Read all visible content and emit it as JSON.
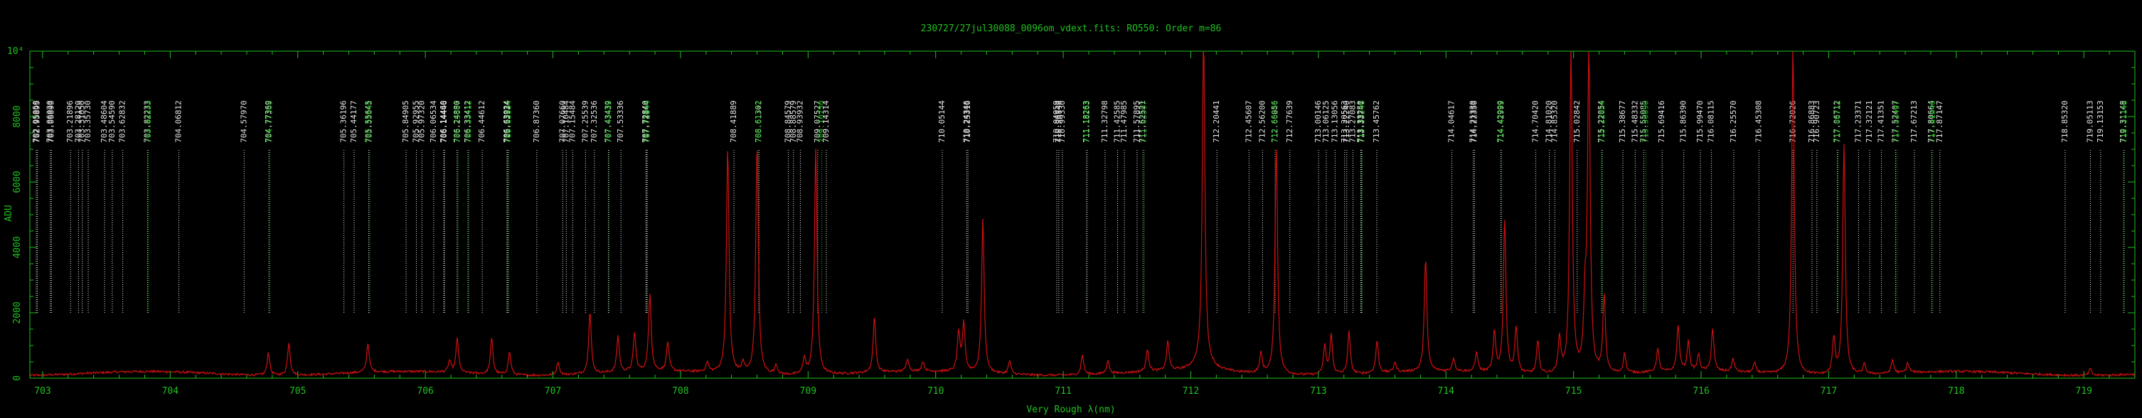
{
  "chart_data": {
    "type": "line",
    "title": "230727/27jul30088_0096om_vdext.fits: RO550: Order m=86",
    "xlabel": "Very Rough λ(nm)",
    "ylabel": "ADU",
    "y_exponent_label": "10⁴",
    "xlim": [
      702.9,
      719.4
    ],
    "ylim": [
      0,
      10000
    ],
    "x_ticks": [
      703,
      704,
      705,
      706,
      707,
      708,
      709,
      710,
      711,
      712,
      713,
      714,
      715,
      716,
      717,
      718,
      719
    ],
    "y_ticks": [
      0,
      2000,
      4000,
      6000,
      8000
    ],
    "colors": {
      "spectrum": "#d01010",
      "axes": "#20c020",
      "label_white": "#e8e8e8",
      "label_green": "#20c020"
    },
    "spectrum_peaks": [
      {
        "x": 704.77,
        "y": 700
      },
      {
        "x": 704.93,
        "y": 1000
      },
      {
        "x": 705.55,
        "y": 900
      },
      {
        "x": 706.19,
        "y": 350
      },
      {
        "x": 706.25,
        "y": 1050
      },
      {
        "x": 706.52,
        "y": 1100
      },
      {
        "x": 706.66,
        "y": 700
      },
      {
        "x": 707.04,
        "y": 400
      },
      {
        "x": 707.29,
        "y": 1900
      },
      {
        "x": 707.51,
        "y": 1100
      },
      {
        "x": 707.64,
        "y": 1200
      },
      {
        "x": 707.76,
        "y": 2400
      },
      {
        "x": 707.9,
        "y": 900
      },
      {
        "x": 708.21,
        "y": 300
      },
      {
        "x": 708.37,
        "y": 6900
      },
      {
        "x": 708.49,
        "y": 300
      },
      {
        "x": 708.6,
        "y": 7100
      },
      {
        "x": 708.75,
        "y": 300
      },
      {
        "x": 708.97,
        "y": 500
      },
      {
        "x": 709.06,
        "y": 6900
      },
      {
        "x": 709.52,
        "y": 1700
      },
      {
        "x": 709.78,
        "y": 400
      },
      {
        "x": 709.9,
        "y": 300
      },
      {
        "x": 710.18,
        "y": 1200
      },
      {
        "x": 710.22,
        "y": 1500
      },
      {
        "x": 710.37,
        "y": 4700
      },
      {
        "x": 710.58,
        "y": 400
      },
      {
        "x": 711.15,
        "y": 600
      },
      {
        "x": 711.35,
        "y": 400
      },
      {
        "x": 711.66,
        "y": 700
      },
      {
        "x": 711.82,
        "y": 900
      },
      {
        "x": 712.1,
        "y": 10000
      },
      {
        "x": 712.55,
        "y": 600
      },
      {
        "x": 712.67,
        "y": 7000
      },
      {
        "x": 713.05,
        "y": 900
      },
      {
        "x": 713.1,
        "y": 1200
      },
      {
        "x": 713.24,
        "y": 1300
      },
      {
        "x": 713.46,
        "y": 1000
      },
      {
        "x": 713.6,
        "y": 300
      },
      {
        "x": 713.84,
        "y": 3500
      },
      {
        "x": 714.06,
        "y": 400
      },
      {
        "x": 714.24,
        "y": 600
      },
      {
        "x": 714.38,
        "y": 1200
      },
      {
        "x": 714.46,
        "y": 4700
      },
      {
        "x": 714.55,
        "y": 1400
      },
      {
        "x": 714.72,
        "y": 1000
      },
      {
        "x": 714.89,
        "y": 1100
      },
      {
        "x": 714.98,
        "y": 10000
      },
      {
        "x": 715.09,
        "y": 1900
      },
      {
        "x": 715.12,
        "y": 10000
      },
      {
        "x": 715.24,
        "y": 2400
      },
      {
        "x": 715.4,
        "y": 600
      },
      {
        "x": 715.66,
        "y": 700
      },
      {
        "x": 715.82,
        "y": 1400
      },
      {
        "x": 715.9,
        "y": 900
      },
      {
        "x": 715.98,
        "y": 500
      },
      {
        "x": 716.09,
        "y": 1300
      },
      {
        "x": 716.25,
        "y": 400
      },
      {
        "x": 716.42,
        "y": 300
      },
      {
        "x": 716.72,
        "y": 10000
      },
      {
        "x": 717.04,
        "y": 1100
      },
      {
        "x": 717.12,
        "y": 7000
      },
      {
        "x": 717.28,
        "y": 300
      },
      {
        "x": 717.5,
        "y": 400
      },
      {
        "x": 717.62,
        "y": 300
      },
      {
        "x": 719.05,
        "y": 200
      }
    ],
    "line_labels": [
      {
        "text": "702.95050",
        "x": 702.9505,
        "color": "white"
      },
      {
        "text": "702.95895",
        "x": 702.959,
        "color": "white"
      },
      {
        "text": "703.06020",
        "x": 703.0602,
        "color": "white"
      },
      {
        "text": "703.06890",
        "x": 703.0689,
        "color": "white"
      },
      {
        "text": "703.21896",
        "x": 703.219,
        "color": "white"
      },
      {
        "text": "703.28120",
        "x": 703.2812,
        "color": "white"
      },
      {
        "text": "703.31050",
        "x": 703.3105,
        "color": "white"
      },
      {
        "text": "703.35730",
        "x": 703.3573,
        "color": "white"
      },
      {
        "text": "703.48604",
        "x": 703.486,
        "color": "white"
      },
      {
        "text": "703.54590",
        "x": 703.5459,
        "color": "white"
      },
      {
        "text": "703.62832",
        "x": 703.6283,
        "color": "white"
      },
      {
        "text": "703.82233",
        "x": 703.8223,
        "color": "white"
      },
      {
        "text": "703.82233",
        "x": 703.83,
        "color": "green"
      },
      {
        "text": "704.06812",
        "x": 704.0681,
        "color": "white"
      },
      {
        "text": "704.57970",
        "x": 704.5797,
        "color": "white"
      },
      {
        "text": "704.77369",
        "x": 704.7737,
        "color": "white"
      },
      {
        "text": "704.77369",
        "x": 704.781,
        "color": "green"
      },
      {
        "text": "705.36196",
        "x": 705.362,
        "color": "white"
      },
      {
        "text": "705.44177",
        "x": 705.4418,
        "color": "white"
      },
      {
        "text": "705.55645",
        "x": 705.5565,
        "color": "white"
      },
      {
        "text": "705.55645",
        "x": 705.564,
        "color": "green"
      },
      {
        "text": "705.84905",
        "x": 705.849,
        "color": "white"
      },
      {
        "text": "705.92955",
        "x": 705.9296,
        "color": "white"
      },
      {
        "text": "705.97320",
        "x": 705.9732,
        "color": "white"
      },
      {
        "text": "706.06534",
        "x": 706.0653,
        "color": "white"
      },
      {
        "text": "706.14460",
        "x": 706.1446,
        "color": "white"
      },
      {
        "text": "706.14446",
        "x": 706.15,
        "color": "white"
      },
      {
        "text": "706.24880",
        "x": 706.2488,
        "color": "white"
      },
      {
        "text": "706.25607",
        "x": 706.256,
        "color": "green"
      },
      {
        "text": "706.33412",
        "x": 706.3341,
        "color": "white"
      },
      {
        "text": "706.33412",
        "x": 706.341,
        "color": "green"
      },
      {
        "text": "706.44612",
        "x": 706.4461,
        "color": "white"
      },
      {
        "text": "706.63924",
        "x": 706.6392,
        "color": "white"
      },
      {
        "text": "706.63934",
        "x": 706.646,
        "color": "white"
      },
      {
        "text": "706.63934",
        "x": 706.653,
        "color": "green"
      },
      {
        "text": "706.87360",
        "x": 706.8736,
        "color": "white"
      },
      {
        "text": "707.07660",
        "x": 707.0766,
        "color": "white"
      },
      {
        "text": "707.10484",
        "x": 707.1048,
        "color": "white"
      },
      {
        "text": "707.15484",
        "x": 707.1548,
        "color": "white"
      },
      {
        "text": "707.25539",
        "x": 707.2554,
        "color": "white"
      },
      {
        "text": "707.32536",
        "x": 707.3254,
        "color": "white"
      },
      {
        "text": "707.43439",
        "x": 707.4344,
        "color": "white"
      },
      {
        "text": "707.43439",
        "x": 707.441,
        "color": "green"
      },
      {
        "text": "707.53336",
        "x": 707.5334,
        "color": "white"
      },
      {
        "text": "707.72840",
        "x": 707.7284,
        "color": "white"
      },
      {
        "text": "707.72844",
        "x": 707.735,
        "color": "white"
      },
      {
        "text": "707.72844",
        "x": 707.742,
        "color": "green"
      },
      {
        "text": "708.41889",
        "x": 708.4189,
        "color": "white"
      },
      {
        "text": "708.61302",
        "x": 708.613,
        "color": "white"
      },
      {
        "text": "708.61772",
        "x": 708.6177,
        "color": "green"
      },
      {
        "text": "708.84579",
        "x": 708.8458,
        "color": "white"
      },
      {
        "text": "708.88579",
        "x": 708.8858,
        "color": "white"
      },
      {
        "text": "708.93932",
        "x": 708.9393,
        "color": "white"
      },
      {
        "text": "709.07527",
        "x": 709.0753,
        "color": "white"
      },
      {
        "text": "709.10750",
        "x": 709.1075,
        "color": "green"
      },
      {
        "text": "709.14314",
        "x": 709.1431,
        "color": "white"
      },
      {
        "text": "710.05144",
        "x": 710.0514,
        "color": "white"
      },
      {
        "text": "710.24346",
        "x": 710.2435,
        "color": "white"
      },
      {
        "text": "710.25310",
        "x": 710.2531,
        "color": "white"
      },
      {
        "text": "710.94959",
        "x": 710.9496,
        "color": "white"
      },
      {
        "text": "710.96540",
        "x": 710.9654,
        "color": "white"
      },
      {
        "text": "710.99330",
        "x": 710.9933,
        "color": "white"
      },
      {
        "text": "711.18263",
        "x": 711.1826,
        "color": "white"
      },
      {
        "text": "711.18263",
        "x": 711.19,
        "color": "green"
      },
      {
        "text": "711.32798",
        "x": 711.328,
        "color": "white"
      },
      {
        "text": "711.42585",
        "x": 711.4259,
        "color": "white"
      },
      {
        "text": "711.47985",
        "x": 711.4799,
        "color": "white"
      },
      {
        "text": "711.57895",
        "x": 711.579,
        "color": "white"
      },
      {
        "text": "711.62521",
        "x": 711.6252,
        "color": "white"
      },
      {
        "text": "711.63597",
        "x": 711.636,
        "color": "green"
      },
      {
        "text": "712.20441",
        "x": 712.2044,
        "color": "white"
      },
      {
        "text": "712.45607",
        "x": 712.4561,
        "color": "white"
      },
      {
        "text": "712.56200",
        "x": 712.562,
        "color": "white"
      },
      {
        "text": "712.66056",
        "x": 712.6606,
        "color": "white"
      },
      {
        "text": "712.66246",
        "x": 712.6625,
        "color": "green"
      },
      {
        "text": "712.77639",
        "x": 712.7764,
        "color": "white"
      },
      {
        "text": "713.00146",
        "x": 713.0015,
        "color": "white"
      },
      {
        "text": "713.06125",
        "x": 713.0613,
        "color": "white"
      },
      {
        "text": "713.13056",
        "x": 713.1306,
        "color": "white"
      },
      {
        "text": "713.20563",
        "x": 713.2056,
        "color": "white"
      },
      {
        "text": "713.22240",
        "x": 713.2224,
        "color": "white"
      },
      {
        "text": "713.27083",
        "x": 713.2708,
        "color": "white"
      },
      {
        "text": "713.33250",
        "x": 713.3325,
        "color": "white"
      },
      {
        "text": "713.33740",
        "x": 713.3374,
        "color": "white"
      },
      {
        "text": "713.33240",
        "x": 713.344,
        "color": "green"
      },
      {
        "text": "713.45762",
        "x": 713.4576,
        "color": "white"
      },
      {
        "text": "714.04617",
        "x": 714.0462,
        "color": "white"
      },
      {
        "text": "714.21330",
        "x": 714.2133,
        "color": "white"
      },
      {
        "text": "714.22350",
        "x": 714.2235,
        "color": "white"
      },
      {
        "text": "714.42999",
        "x": 714.43,
        "color": "white"
      },
      {
        "text": "714.42999",
        "x": 714.437,
        "color": "green"
      },
      {
        "text": "714.70420",
        "x": 714.7042,
        "color": "white"
      },
      {
        "text": "714.81020",
        "x": 714.8102,
        "color": "white"
      },
      {
        "text": "714.85320",
        "x": 714.8532,
        "color": "white"
      },
      {
        "text": "715.02842",
        "x": 715.0284,
        "color": "white"
      },
      {
        "text": "715.22054",
        "x": 715.2205,
        "color": "white"
      },
      {
        "text": "715.22054",
        "x": 715.227,
        "color": "green"
      },
      {
        "text": "715.38677",
        "x": 715.3868,
        "color": "white"
      },
      {
        "text": "715.48332",
        "x": 715.4833,
        "color": "white"
      },
      {
        "text": "715.55085",
        "x": 715.5509,
        "color": "white"
      },
      {
        "text": "715.56690",
        "x": 715.5669,
        "color": "green"
      },
      {
        "text": "715.69416",
        "x": 715.6942,
        "color": "white"
      },
      {
        "text": "715.86390",
        "x": 715.8639,
        "color": "white"
      },
      {
        "text": "715.99470",
        "x": 715.9947,
        "color": "white"
      },
      {
        "text": "716.08115",
        "x": 716.0812,
        "color": "white"
      },
      {
        "text": "716.25570",
        "x": 716.2557,
        "color": "white"
      },
      {
        "text": "716.45308",
        "x": 716.4531,
        "color": "white"
      },
      {
        "text": "716.72026",
        "x": 716.7203,
        "color": "white"
      },
      {
        "text": "716.86883",
        "x": 716.8688,
        "color": "white"
      },
      {
        "text": "716.90723",
        "x": 716.9072,
        "color": "white"
      },
      {
        "text": "717.06712",
        "x": 717.0671,
        "color": "white"
      },
      {
        "text": "717.06712",
        "x": 717.074,
        "color": "green"
      },
      {
        "text": "717.23371",
        "x": 717.2337,
        "color": "white"
      },
      {
        "text": "717.32121",
        "x": 717.3212,
        "color": "white"
      },
      {
        "text": "717.41351",
        "x": 717.4135,
        "color": "white"
      },
      {
        "text": "717.52407",
        "x": 717.5241,
        "color": "white"
      },
      {
        "text": "717.53497",
        "x": 717.535,
        "color": "green"
      },
      {
        "text": "717.67213",
        "x": 717.6721,
        "color": "white"
      },
      {
        "text": "717.80664",
        "x": 717.8066,
        "color": "white"
      },
      {
        "text": "717.81640",
        "x": 717.8164,
        "color": "green"
      },
      {
        "text": "717.87147",
        "x": 717.8715,
        "color": "white"
      },
      {
        "text": "718.85320",
        "x": 718.8532,
        "color": "white"
      },
      {
        "text": "719.05113",
        "x": 719.0511,
        "color": "white"
      },
      {
        "text": "719.13153",
        "x": 719.1315,
        "color": "white"
      },
      {
        "text": "719.31148",
        "x": 719.3115,
        "color": "white"
      },
      {
        "text": "719.31148",
        "x": 719.318,
        "color": "green"
      }
    ]
  }
}
